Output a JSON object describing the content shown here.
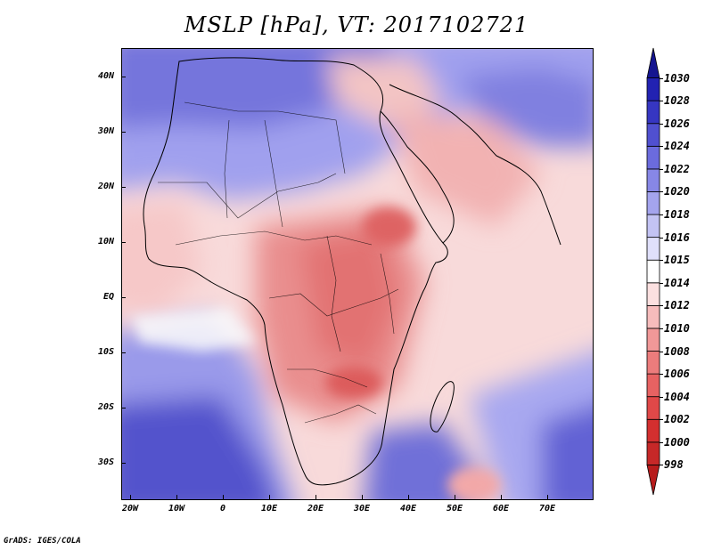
{
  "title": "MSLP [hPa], VT: 2017102721",
  "footer": "GrADS: IGES/COLA",
  "map": {
    "lat_labels": [
      "40N",
      "30N",
      "20N",
      "10N",
      "EQ",
      "10S",
      "20S",
      "30S"
    ],
    "lon_labels": [
      "20W",
      "10W",
      "0",
      "10E",
      "20E",
      "30E",
      "40E",
      "50E",
      "60E",
      "70E"
    ]
  },
  "colorbar": {
    "levels": [
      "998",
      "1000",
      "1002",
      "1004",
      "1006",
      "1008",
      "1010",
      "1012",
      "1014",
      "1015",
      "1016",
      "1018",
      "1020",
      "1022",
      "1024",
      "1026",
      "1028",
      "1030"
    ],
    "colors": [
      "#b71c1c",
      "#c62828",
      "#d32f2f",
      "#e04848",
      "#e76262",
      "#ec7c7c",
      "#f19898",
      "#f6bcbc",
      "#fbe0e0",
      "#ffffff",
      "#e0e0fb",
      "#c3c3f4",
      "#a4a4ee",
      "#8787e6",
      "#6b6bdd",
      "#5050d0",
      "#3636c2",
      "#2222b2",
      "#151590"
    ]
  }
}
